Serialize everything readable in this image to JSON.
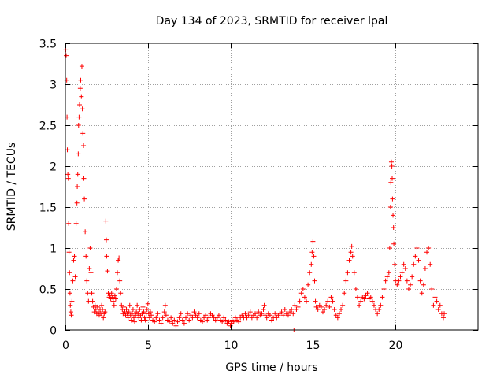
{
  "chart_data": {
    "type": "scatter",
    "title": "Day 134 of 2023, SRMTID for receiver lpal",
    "xlabel": "GPS time / hours",
    "ylabel": "SRMTID / TECUs",
    "xlim": [
      0,
      25
    ],
    "ylim": [
      0,
      3.5
    ],
    "grid": true,
    "marker": "+",
    "marker_color": "#ff0000",
    "grid_color": "#a0a0a0",
    "x_ticks": [
      {
        "value": 0,
        "label": "0"
      },
      {
        "value": 5,
        "label": "5"
      },
      {
        "value": 10,
        "label": "10"
      },
      {
        "value": 15,
        "label": "15"
      },
      {
        "value": 20,
        "label": "20"
      }
    ],
    "y_ticks": [
      {
        "value": 0,
        "label": "0"
      },
      {
        "value": 0.5,
        "label": "0.5"
      },
      {
        "value": 1,
        "label": "1"
      },
      {
        "value": 1.5,
        "label": "1.5"
      },
      {
        "value": 2,
        "label": "2"
      },
      {
        "value": 2.5,
        "label": "2.5"
      },
      {
        "value": 3,
        "label": "3"
      },
      {
        "value": 3.5,
        "label": "3.5"
      }
    ],
    "series": [
      {
        "name": "SRMTID",
        "points": [
          [
            0.02,
            3.42
          ],
          [
            0.05,
            3.35
          ],
          [
            0.08,
            3.05
          ],
          [
            0.1,
            2.6
          ],
          [
            0.12,
            2.2
          ],
          [
            0.15,
            1.9
          ],
          [
            0.18,
            1.85
          ],
          [
            0.2,
            1.3
          ],
          [
            0.22,
            0.95
          ],
          [
            0.25,
            0.7
          ],
          [
            0.28,
            0.45
          ],
          [
            0.3,
            0.3
          ],
          [
            0.33,
            0.22
          ],
          [
            0.36,
            0.18
          ],
          [
            0.4,
            0.35
          ],
          [
            0.45,
            0.6
          ],
          [
            0.5,
            0.85
          ],
          [
            0.55,
            0.9
          ],
          [
            0.6,
            0.65
          ],
          [
            0.65,
            1.3
          ],
          [
            0.7,
            1.55
          ],
          [
            0.72,
            1.75
          ],
          [
            0.75,
            1.9
          ],
          [
            0.78,
            2.15
          ],
          [
            0.8,
            2.5
          ],
          [
            0.83,
            2.6
          ],
          [
            0.86,
            2.75
          ],
          [
            0.9,
            2.95
          ],
          [
            0.93,
            3.05
          ],
          [
            0.97,
            2.85
          ],
          [
            1.0,
            3.22
          ],
          [
            1.03,
            2.7
          ],
          [
            1.06,
            2.4
          ],
          [
            1.1,
            2.25
          ],
          [
            1.12,
            1.85
          ],
          [
            1.15,
            1.6
          ],
          [
            1.2,
            1.2
          ],
          [
            1.25,
            0.9
          ],
          [
            1.3,
            0.6
          ],
          [
            1.35,
            0.45
          ],
          [
            1.4,
            0.35
          ],
          [
            1.45,
            0.75
          ],
          [
            1.5,
            1.0
          ],
          [
            1.55,
            0.7
          ],
          [
            1.6,
            0.45
          ],
          [
            1.65,
            0.35
          ],
          [
            1.7,
            0.28
          ],
          [
            1.75,
            0.22
          ],
          [
            1.8,
            0.3
          ],
          [
            1.85,
            0.25
          ],
          [
            1.9,
            0.2
          ],
          [
            1.95,
            0.28
          ],
          [
            2.0,
            0.22
          ],
          [
            2.05,
            0.18
          ],
          [
            2.1,
            0.25
          ],
          [
            2.15,
            0.2
          ],
          [
            2.2,
            0.3
          ],
          [
            2.25,
            0.25
          ],
          [
            2.3,
            0.15
          ],
          [
            2.35,
            0.2
          ],
          [
            2.4,
            0.22
          ],
          [
            2.45,
            1.33
          ],
          [
            2.48,
            1.1
          ],
          [
            2.5,
            0.9
          ],
          [
            2.55,
            0.72
          ],
          [
            2.6,
            0.45
          ],
          [
            2.65,
            0.4
          ],
          [
            2.7,
            0.42
          ],
          [
            2.75,
            0.38
          ],
          [
            2.8,
            0.45
          ],
          [
            2.85,
            0.4
          ],
          [
            2.9,
            0.35
          ],
          [
            2.95,
            0.3
          ],
          [
            3.0,
            0.42
          ],
          [
            3.05,
            0.38
          ],
          [
            3.1,
            0.5
          ],
          [
            3.15,
            0.7
          ],
          [
            3.2,
            0.85
          ],
          [
            3.25,
            0.88
          ],
          [
            3.3,
            0.6
          ],
          [
            3.35,
            0.45
          ],
          [
            3.4,
            0.3
          ],
          [
            3.45,
            0.25
          ],
          [
            3.5,
            0.2
          ],
          [
            3.55,
            0.28
          ],
          [
            3.6,
            0.22
          ],
          [
            3.65,
            0.18
          ],
          [
            3.7,
            0.25
          ],
          [
            3.75,
            0.2
          ],
          [
            3.8,
            0.15
          ],
          [
            3.85,
            0.22
          ],
          [
            3.9,
            0.3
          ],
          [
            3.95,
            0.18
          ],
          [
            4.0,
            0.12
          ],
          [
            4.05,
            0.2
          ],
          [
            4.1,
            0.25
          ],
          [
            4.15,
            0.15
          ],
          [
            4.2,
            0.1
          ],
          [
            4.25,
            0.18
          ],
          [
            4.3,
            0.22
          ],
          [
            4.35,
            0.3
          ],
          [
            4.4,
            0.2
          ],
          [
            4.45,
            0.15
          ],
          [
            4.5,
            0.25
          ],
          [
            4.55,
            0.18
          ],
          [
            4.6,
            0.12
          ],
          [
            4.65,
            0.2
          ],
          [
            4.7,
            0.28
          ],
          [
            4.75,
            0.22
          ],
          [
            4.8,
            0.15
          ],
          [
            4.85,
            0.12
          ],
          [
            4.9,
            0.2
          ],
          [
            4.95,
            0.25
          ],
          [
            5.0,
            0.32
          ],
          [
            5.05,
            0.2
          ],
          [
            5.1,
            0.15
          ],
          [
            5.15,
            0.22
          ],
          [
            5.2,
            0.18
          ],
          [
            5.3,
            0.12
          ],
          [
            5.4,
            0.1
          ],
          [
            5.5,
            0.15
          ],
          [
            5.6,
            0.2
          ],
          [
            5.7,
            0.12
          ],
          [
            5.8,
            0.08
          ],
          [
            5.9,
            0.15
          ],
          [
            6.0,
            0.22
          ],
          [
            6.05,
            0.3
          ],
          [
            6.1,
            0.18
          ],
          [
            6.2,
            0.12
          ],
          [
            6.3,
            0.1
          ],
          [
            6.4,
            0.15
          ],
          [
            6.5,
            0.08
          ],
          [
            6.6,
            0.12
          ],
          [
            6.7,
            0.05
          ],
          [
            6.8,
            0.1
          ],
          [
            6.9,
            0.15
          ],
          [
            7.0,
            0.2
          ],
          [
            7.1,
            0.12
          ],
          [
            7.2,
            0.08
          ],
          [
            7.3,
            0.15
          ],
          [
            7.4,
            0.2
          ],
          [
            7.5,
            0.12
          ],
          [
            7.6,
            0.18
          ],
          [
            7.7,
            0.15
          ],
          [
            7.8,
            0.22
          ],
          [
            7.9,
            0.18
          ],
          [
            8.0,
            0.15
          ],
          [
            8.1,
            0.2
          ],
          [
            8.2,
            0.12
          ],
          [
            8.3,
            0.1
          ],
          [
            8.4,
            0.15
          ],
          [
            8.5,
            0.18
          ],
          [
            8.6,
            0.12
          ],
          [
            8.7,
            0.15
          ],
          [
            8.8,
            0.2
          ],
          [
            8.9,
            0.18
          ],
          [
            9.0,
            0.15
          ],
          [
            9.1,
            0.12
          ],
          [
            9.2,
            0.15
          ],
          [
            9.3,
            0.18
          ],
          [
            9.4,
            0.12
          ],
          [
            9.5,
            0.1
          ],
          [
            9.6,
            0.15
          ],
          [
            9.7,
            0.12
          ],
          [
            9.8,
            0.08
          ],
          [
            9.9,
            0.1
          ],
          [
            10.0,
            0.05
          ],
          [
            10.05,
            0.08
          ],
          [
            10.1,
            0.12
          ],
          [
            10.2,
            0.1
          ],
          [
            10.3,
            0.15
          ],
          [
            10.4,
            0.12
          ],
          [
            10.5,
            0.1
          ],
          [
            10.6,
            0.15
          ],
          [
            10.7,
            0.18
          ],
          [
            10.8,
            0.15
          ],
          [
            10.9,
            0.2
          ],
          [
            11.0,
            0.15
          ],
          [
            11.1,
            0.18
          ],
          [
            11.2,
            0.22
          ],
          [
            11.3,
            0.15
          ],
          [
            11.4,
            0.18
          ],
          [
            11.5,
            0.2
          ],
          [
            11.6,
            0.15
          ],
          [
            11.7,
            0.22
          ],
          [
            11.8,
            0.18
          ],
          [
            11.9,
            0.2
          ],
          [
            12.0,
            0.25
          ],
          [
            12.05,
            0.3
          ],
          [
            12.1,
            0.18
          ],
          [
            12.2,
            0.15
          ],
          [
            12.3,
            0.2
          ],
          [
            12.4,
            0.18
          ],
          [
            12.5,
            0.12
          ],
          [
            12.6,
            0.15
          ],
          [
            12.7,
            0.2
          ],
          [
            12.8,
            0.15
          ],
          [
            12.9,
            0.18
          ],
          [
            13.0,
            0.2
          ],
          [
            13.1,
            0.22
          ],
          [
            13.2,
            0.18
          ],
          [
            13.3,
            0.25
          ],
          [
            13.4,
            0.2
          ],
          [
            13.5,
            0.18
          ],
          [
            13.6,
            0.22
          ],
          [
            13.7,
            0.25
          ],
          [
            13.8,
            0.2
          ],
          [
            13.85,
            0.0
          ],
          [
            13.9,
            0.3
          ],
          [
            14.0,
            0.25
          ],
          [
            14.1,
            0.28
          ],
          [
            14.2,
            0.35
          ],
          [
            14.3,
            0.45
          ],
          [
            14.4,
            0.5
          ],
          [
            14.5,
            0.4
          ],
          [
            14.6,
            0.35
          ],
          [
            14.7,
            0.55
          ],
          [
            14.8,
            0.7
          ],
          [
            14.9,
            0.8
          ],
          [
            14.95,
            0.95
          ],
          [
            15.0,
            1.08
          ],
          [
            15.05,
            0.9
          ],
          [
            15.1,
            0.6
          ],
          [
            15.15,
            0.35
          ],
          [
            15.2,
            0.28
          ],
          [
            15.3,
            0.25
          ],
          [
            15.4,
            0.3
          ],
          [
            15.5,
            0.28
          ],
          [
            15.6,
            0.22
          ],
          [
            15.7,
            0.25
          ],
          [
            15.8,
            0.3
          ],
          [
            15.9,
            0.35
          ],
          [
            16.0,
            0.28
          ],
          [
            16.1,
            0.4
          ],
          [
            16.2,
            0.35
          ],
          [
            16.3,
            0.25
          ],
          [
            16.4,
            0.18
          ],
          [
            16.5,
            0.15
          ],
          [
            16.6,
            0.2
          ],
          [
            16.7,
            0.25
          ],
          [
            16.8,
            0.3
          ],
          [
            16.9,
            0.45
          ],
          [
            17.0,
            0.6
          ],
          [
            17.1,
            0.7
          ],
          [
            17.2,
            0.85
          ],
          [
            17.3,
            0.95
          ],
          [
            17.35,
            1.02
          ],
          [
            17.4,
            0.9
          ],
          [
            17.5,
            0.7
          ],
          [
            17.6,
            0.5
          ],
          [
            17.7,
            0.4
          ],
          [
            17.8,
            0.3
          ],
          [
            17.9,
            0.35
          ],
          [
            18.0,
            0.4
          ],
          [
            18.1,
            0.38
          ],
          [
            18.2,
            0.42
          ],
          [
            18.3,
            0.45
          ],
          [
            18.4,
            0.38
          ],
          [
            18.5,
            0.4
          ],
          [
            18.6,
            0.35
          ],
          [
            18.7,
            0.3
          ],
          [
            18.8,
            0.25
          ],
          [
            18.9,
            0.2
          ],
          [
            19.0,
            0.25
          ],
          [
            19.1,
            0.3
          ],
          [
            19.2,
            0.4
          ],
          [
            19.3,
            0.5
          ],
          [
            19.4,
            0.6
          ],
          [
            19.5,
            0.65
          ],
          [
            19.6,
            0.7
          ],
          [
            19.65,
            1.0
          ],
          [
            19.7,
            1.5
          ],
          [
            19.72,
            1.8
          ],
          [
            19.75,
            2.05
          ],
          [
            19.78,
            2.0
          ],
          [
            19.8,
            1.85
          ],
          [
            19.82,
            1.6
          ],
          [
            19.85,
            1.4
          ],
          [
            19.88,
            1.25
          ],
          [
            19.9,
            1.05
          ],
          [
            19.95,
            0.8
          ],
          [
            20.0,
            0.6
          ],
          [
            20.1,
            0.55
          ],
          [
            20.2,
            0.6
          ],
          [
            20.3,
            0.65
          ],
          [
            20.4,
            0.7
          ],
          [
            20.5,
            0.8
          ],
          [
            20.6,
            0.75
          ],
          [
            20.7,
            0.6
          ],
          [
            20.8,
            0.5
          ],
          [
            20.9,
            0.55
          ],
          [
            21.0,
            0.65
          ],
          [
            21.1,
            0.8
          ],
          [
            21.2,
            0.9
          ],
          [
            21.3,
            1.0
          ],
          [
            21.4,
            0.85
          ],
          [
            21.5,
            0.6
          ],
          [
            21.6,
            0.45
          ],
          [
            21.7,
            0.55
          ],
          [
            21.8,
            0.75
          ],
          [
            21.9,
            0.95
          ],
          [
            22.0,
            1.0
          ],
          [
            22.1,
            0.8
          ],
          [
            22.2,
            0.5
          ],
          [
            22.3,
            0.3
          ],
          [
            22.4,
            0.4
          ],
          [
            22.5,
            0.35
          ],
          [
            22.6,
            0.25
          ],
          [
            22.7,
            0.3
          ],
          [
            22.8,
            0.2
          ],
          [
            22.9,
            0.15
          ],
          [
            22.95,
            0.2
          ]
        ]
      }
    ]
  }
}
